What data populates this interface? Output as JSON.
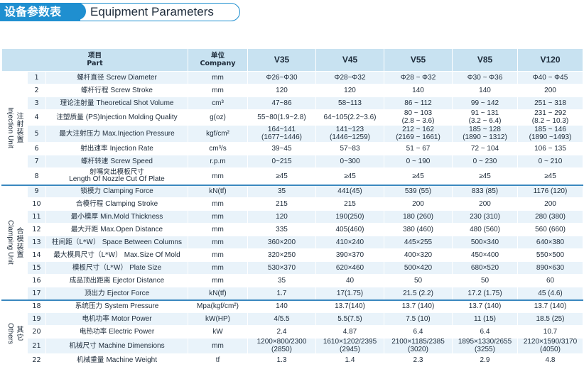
{
  "header": {
    "title_cn": "设备参数表",
    "title_en": "Equipment Parameters"
  },
  "table": {
    "col_part_cn": "项目",
    "col_part_en": "Part",
    "col_unit_cn": "单位",
    "col_unit_en": "Company",
    "models": [
      "V35",
      "V45",
      "V55",
      "V85",
      "V120"
    ],
    "groups": [
      {
        "en": "Injection Unit",
        "cn": "注射装置"
      },
      {
        "en": "Clamping Unit",
        "cn": "合模装置"
      },
      {
        "en": "Others",
        "cn": "其它"
      }
    ],
    "rows": [
      {
        "no": "1",
        "cn": "螺杆直径",
        "en": "Screw Diameter",
        "unit": "mm",
        "v": [
          "Φ26~Φ30",
          "Φ28~Φ32",
          "Φ28 ~ Φ32",
          "Φ30 ~ Φ36",
          "Φ40 ~ Φ45"
        ]
      },
      {
        "no": "2",
        "cn": "螺杆行程",
        "en": "Screw Stroke",
        "unit": "mm",
        "v": [
          "120",
          "120",
          "140",
          "140",
          "200"
        ]
      },
      {
        "no": "3",
        "cn": "理论注射量",
        "en": "Theoretical Shot Volume",
        "unit": "cm³",
        "v": [
          "47~86",
          "58~113",
          "86 ~ 112",
          "99 ~ 142",
          "251 ~ 318"
        ]
      },
      {
        "no": "4",
        "cn": "注塑质量",
        "en": "(PS)Injection Molding Quality",
        "unit": "g(oz)",
        "v": [
          "55~80(1.9~2.8)",
          "64~105(2.2~3.6)",
          "80 ~ 103\n(2.8 ~ 3.6)",
          "91 ~ 131\n(3.2 ~ 6.4)",
          "231 ~ 292\n(8.2 ~ 10.3)"
        ]
      },
      {
        "no": "5",
        "cn": "最大注射压力",
        "en": "Max.Injection Pressure",
        "unit": "kgf/cm²",
        "v": [
          "164~141\n(1677~1446)",
          "141~123\n(1446~1259)",
          "212 ~ 162\n(2169 ~ 1661)",
          "185 ~ 128\n(1890 ~ 1312)",
          "185 ~ 146\n(1890 ~1493)"
        ]
      },
      {
        "no": "6",
        "cn": "射出速率",
        "en": "Injection Rate",
        "unit": "cm³/s",
        "v": [
          "39~45",
          "57~83",
          "51 ~ 67",
          "72 ~ 104",
          "106 ~ 135"
        ]
      },
      {
        "no": "7",
        "cn": "螺杆转速",
        "en": "Screw Speed",
        "unit": "r.p.m",
        "v": [
          "0~215",
          "0~300",
          "0 ~ 190",
          "0 ~ 230",
          "0 ~ 210"
        ]
      },
      {
        "no": "8",
        "cn": "射嘴突出模板尺寸",
        "en": "Length Of Nozzle Cut Of Plate",
        "unit": "mm",
        "v": [
          "≥45",
          "≥45",
          "≥45",
          "≥45",
          "≥45"
        ]
      },
      {
        "no": "9",
        "cn": "锁模力",
        "en": "Clamping Force",
        "unit": "kN(tf)",
        "v": [
          "35",
          "441(45)",
          "539 (55)",
          "833 (85)",
          "1176 (120)"
        ]
      },
      {
        "no": "10",
        "cn": "合模行程",
        "en": "Clamping Stroke",
        "unit": "mm",
        "v": [
          "215",
          "215",
          "200",
          "200",
          "200"
        ]
      },
      {
        "no": "11",
        "cn": "最小模厚",
        "en": "Min.Mold Thickness",
        "unit": "mm",
        "v": [
          "120",
          "190(250)",
          "180 (260)",
          "230 (310)",
          "280 (380)"
        ]
      },
      {
        "no": "12",
        "cn": "最大开距",
        "en": "Max.Open Distance",
        "unit": "mm",
        "v": [
          "335",
          "405(460)",
          "380 (460)",
          "480 (560)",
          "560 (660)"
        ]
      },
      {
        "no": "13",
        "cn": "柱间距（L*W）",
        "en": "Space Between Columns",
        "unit": "mm",
        "v": [
          "360×200",
          "410×240",
          "445×255",
          "500×340",
          "640×380"
        ]
      },
      {
        "no": "14",
        "cn": "最大模具尺寸（L*W）",
        "en": "Max.Size Of Mold",
        "unit": "mm",
        "v": [
          "320×250",
          "390×370",
          "400×320",
          "450×400",
          "550×500"
        ]
      },
      {
        "no": "15",
        "cn": "模板尺寸（L*W）",
        "en": "Plate Size",
        "unit": "mm",
        "v": [
          "530×370",
          "620×460",
          "500×420",
          "680×520",
          "890×630"
        ]
      },
      {
        "no": "16",
        "cn": "成品顶出距离",
        "en": "Ejector Distance",
        "unit": "mm",
        "v": [
          "35",
          "40",
          "50",
          "50",
          "60"
        ]
      },
      {
        "no": "17",
        "cn": "顶出力",
        "en": "Ejector Force",
        "unit": "kN(tf)",
        "v": [
          "1.7",
          "17(1.75)",
          "21.5 (2.2)",
          "17.2 (1.75)",
          "45 (4.6)"
        ]
      },
      {
        "no": "18",
        "cn": "系统压力",
        "en": "System Pressure",
        "unit": "Mpa(kgf/cm²)",
        "v": [
          "140",
          "13.7(140)",
          "13.7 (140)",
          "13.7 (140)",
          "13.7 (140)"
        ]
      },
      {
        "no": "19",
        "cn": "电机功率",
        "en": "Motor Power",
        "unit": "kW(HP)",
        "v": [
          "4/5.5",
          "5.5(7.5)",
          "7.5 (10)",
          "11 (15)",
          "18.5 (25)"
        ]
      },
      {
        "no": "20",
        "cn": "电热功率",
        "en": "Electric Power",
        "unit": "kW",
        "v": [
          "2.4",
          "4.87",
          "6.4",
          "6.4",
          "10.7"
        ]
      },
      {
        "no": "21",
        "cn": "机械尺寸",
        "en": "Machine Dimensions",
        "unit": "mm",
        "v": [
          "1200×800/2300\n(2850)",
          "1610×1202/2395\n(2945)",
          "2100×1185/2385\n(3020)",
          "1895×1330/2655\n(3255)",
          "2120×1590/3170\n(4050)"
        ]
      },
      {
        "no": "22",
        "cn": "机械重量",
        "en": "Machine Weight",
        "unit": "tf",
        "v": [
          "1.3",
          "1.4",
          "2.3",
          "2.9",
          "4.8"
        ]
      }
    ]
  }
}
